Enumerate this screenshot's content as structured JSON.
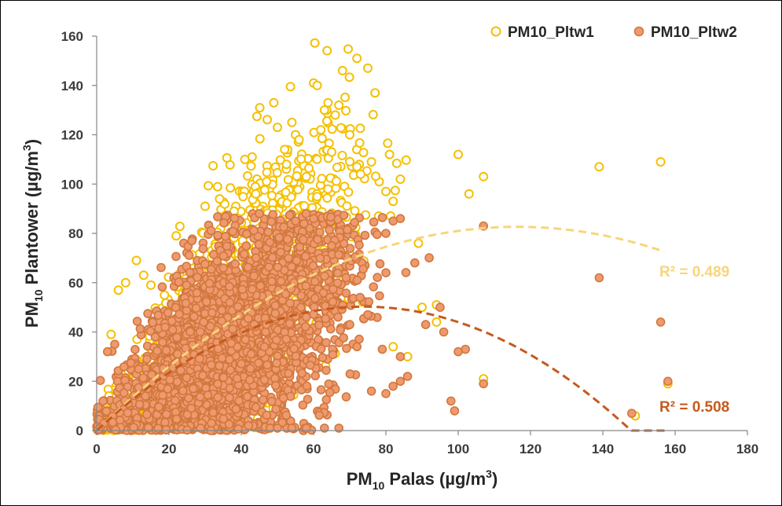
{
  "chart_data": {
    "type": "scatter",
    "xlabel": {
      "prefix": "PM",
      "sub": "10",
      "suffix": " Palas (µg/m",
      "sup": "3",
      "end": ")"
    },
    "ylabel": {
      "prefix": "PM",
      "sub": "10",
      "suffix": " Plantower (µg/m",
      "sup": "3",
      "end": ")"
    },
    "xlim": [
      0,
      180
    ],
    "ylim": [
      0,
      160
    ],
    "x_ticks": [
      "0",
      "20",
      "40",
      "60",
      "80",
      "100",
      "120",
      "140",
      "160",
      "180"
    ],
    "y_ticks": [
      "0",
      "20",
      "40",
      "60",
      "80",
      "100",
      "120",
      "140",
      "160"
    ],
    "grid": false,
    "legend_position": "top-right",
    "series": [
      {
        "name": "PM10_Pltw1",
        "marker": "hollow-circle",
        "color": "#F5C000",
        "trend_color": "#F7D57A",
        "r2_label": "R² = 0.489",
        "trend": {
          "type": "poly2",
          "a": -0.0061,
          "b": 1.42,
          "c": 0,
          "x_range": [
            0,
            157
          ]
        },
        "cloud": [
          {
            "x_center": 30,
            "x_spread": 16,
            "slope": 1.25,
            "y_spread": 20,
            "count": 1000
          },
          {
            "x_center": 50,
            "x_spread": 12,
            "slope": 1.4,
            "y_spread": 25,
            "count": 400
          }
        ],
        "points": [
          [
            72,
            151
          ],
          [
            75,
            147
          ],
          [
            68,
            146
          ],
          [
            60,
            141
          ],
          [
            61,
            140
          ],
          [
            77,
            137
          ],
          [
            49,
            133
          ],
          [
            64,
            133
          ],
          [
            67,
            132
          ],
          [
            63,
            130
          ],
          [
            66,
            128
          ],
          [
            54,
            125
          ],
          [
            50,
            123
          ],
          [
            62,
            122
          ],
          [
            55,
            120
          ],
          [
            70,
            120
          ],
          [
            56,
            118
          ],
          [
            65,
            113
          ],
          [
            52,
            114
          ],
          [
            41,
            110
          ],
          [
            43,
            111
          ],
          [
            72,
            107
          ],
          [
            73,
            104
          ],
          [
            76,
            109
          ],
          [
            81,
            112
          ],
          [
            80,
            97
          ],
          [
            82,
            93
          ],
          [
            84,
            102
          ],
          [
            78,
            87
          ],
          [
            100,
            112
          ],
          [
            103,
            96
          ],
          [
            107,
            103
          ],
          [
            139,
            107
          ],
          [
            156,
            109
          ],
          [
            89,
            76
          ],
          [
            90,
            50
          ],
          [
            94,
            51
          ],
          [
            94,
            44
          ],
          [
            82,
            34
          ],
          [
            86,
            30
          ],
          [
            107,
            21
          ],
          [
            158,
            19
          ],
          [
            149,
            6
          ],
          [
            11,
            69
          ],
          [
            13,
            63
          ],
          [
            8,
            60
          ],
          [
            6,
            57
          ],
          [
            15,
            59
          ],
          [
            4,
            39
          ],
          [
            22,
            79
          ],
          [
            30,
            91
          ],
          [
            34,
            94
          ],
          [
            38,
            89
          ],
          [
            44,
            96
          ],
          [
            47,
            101
          ],
          [
            58,
            103
          ]
        ]
      },
      {
        "name": "PM10_Pltw2",
        "marker": "filled-circle",
        "color": "#EE9A6E",
        "edge_color": "#D2773E",
        "trend_color": "#C55A1E",
        "r2_label": "R² = 0.508",
        "trend": {
          "type": "poly2",
          "a": -0.0092,
          "b": 1.36,
          "c": 0,
          "x_range": [
            0,
            158
          ]
        },
        "cloud": [
          {
            "x_center": 32,
            "x_spread": 14,
            "slope": 0.98,
            "y_spread": 22,
            "count": 2000
          },
          {
            "x_center": 50,
            "x_spread": 12,
            "slope": 0.95,
            "y_spread": 24,
            "count": 700
          }
        ],
        "points": [
          [
            107,
            83
          ],
          [
            139,
            62
          ],
          [
            156,
            44
          ],
          [
            158,
            20
          ],
          [
            148,
            7
          ],
          [
            99,
            8
          ],
          [
            98,
            12
          ],
          [
            96,
            40
          ],
          [
            95,
            50
          ],
          [
            91,
            43
          ],
          [
            102,
            33
          ],
          [
            100,
            32
          ],
          [
            107,
            19
          ],
          [
            84,
            86
          ],
          [
            82,
            85
          ],
          [
            80,
            80
          ],
          [
            88,
            68
          ],
          [
            80,
            64
          ],
          [
            84,
            30
          ],
          [
            84,
            20
          ],
          [
            82,
            18
          ],
          [
            80,
            15
          ],
          [
            79,
            33
          ],
          [
            86,
            22
          ],
          [
            70,
            43
          ],
          [
            72,
            34
          ],
          [
            75,
            47
          ],
          [
            76,
            16
          ],
          [
            69,
            62
          ],
          [
            65,
            75
          ],
          [
            60,
            86
          ],
          [
            55,
            85
          ],
          [
            45,
            88
          ],
          [
            48,
            1
          ],
          [
            50,
            1
          ],
          [
            54,
            1
          ],
          [
            58,
            1
          ],
          [
            63,
            1
          ],
          [
            67,
            1
          ],
          [
            42,
            2
          ],
          [
            5,
            35
          ],
          [
            3,
            32
          ],
          [
            2,
            3
          ],
          [
            1,
            1
          ],
          [
            0.5,
            0.5
          ]
        ]
      }
    ]
  }
}
